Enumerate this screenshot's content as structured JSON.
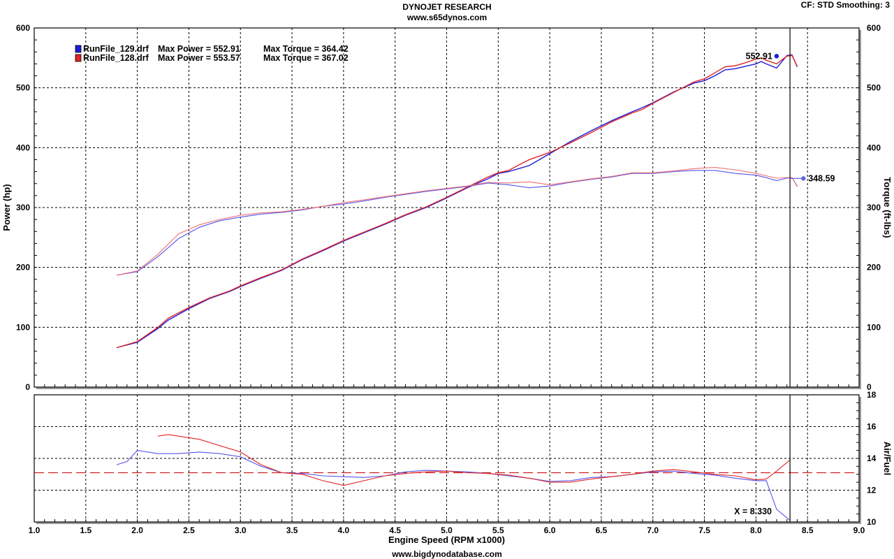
{
  "header": {
    "title": "DYNOJET RESEARCH",
    "subtitle": "www.s65dynos.com",
    "cf_info": "CF: STD  Smoothing: 3"
  },
  "footer": {
    "text": "www.bigdynodatabase.com"
  },
  "legend": [
    {
      "file": "RunFile_129.drf",
      "power_text": "Max Power = 552.91",
      "torque_text": "Max Torque = 364.42",
      "color": "#1a1adb"
    },
    {
      "file": "RunFile_128.drf",
      "power_text": "Max Power = 553.57",
      "torque_text": "Max Torque = 367.02",
      "color": "#e02424"
    }
  ],
  "annotations": {
    "power_marker": "552.91",
    "torque_marker": "348.59",
    "cursor_readout": "X = 8.330"
  },
  "chart_data": [
    {
      "type": "line",
      "title": "DYNOJET RESEARCH",
      "xlabel": "Engine Speed (RPM x1000)",
      "ylabel": "Power (hp)",
      "y2label": "Torque (ft-lbs)",
      "xlim": [
        1.0,
        9.0
      ],
      "ylim": [
        0,
        600
      ],
      "y2lim": [
        0,
        600
      ],
      "xticks": [
        "1.0",
        "1.5",
        "2.0",
        "2.5",
        "3.0",
        "3.5",
        "4.0",
        "4.5",
        "5.0",
        "5.5",
        "6.0",
        "6.5",
        "7.0",
        "7.5",
        "8.0",
        "8.5",
        "9.0"
      ],
      "yticks": [
        "0",
        "100",
        "200",
        "300",
        "400",
        "500",
        "600"
      ],
      "grid": true,
      "cursor_x": 8.33,
      "series": [
        {
          "name": "RunFile_129.drf Power",
          "color": "#1a1adb",
          "x": [
            1.8,
            2.0,
            2.2,
            2.3,
            2.5,
            2.7,
            2.9,
            3.0,
            3.2,
            3.4,
            3.6,
            3.8,
            4.0,
            4.2,
            4.4,
            4.6,
            4.8,
            5.0,
            5.2,
            5.4,
            5.5,
            5.6,
            5.8,
            6.0,
            6.2,
            6.4,
            6.6,
            6.8,
            6.9,
            7.0,
            7.2,
            7.4,
            7.5,
            7.6,
            7.7,
            7.8,
            7.9,
            8.0,
            8.05,
            8.1,
            8.2,
            8.3,
            8.35,
            8.4
          ],
          "y": [
            66,
            75,
            98,
            112,
            131,
            148,
            160,
            168,
            182,
            195,
            213,
            228,
            244,
            258,
            272,
            287,
            300,
            316,
            333,
            348,
            357,
            360,
            370,
            390,
            410,
            428,
            445,
            460,
            467,
            475,
            493,
            508,
            512,
            520,
            530,
            532,
            536,
            540,
            544,
            540,
            533,
            554,
            555,
            535
          ]
        },
        {
          "name": "RunFile_128.drf Power",
          "color": "#e02424",
          "x": [
            1.8,
            2.0,
            2.2,
            2.3,
            2.5,
            2.7,
            2.9,
            3.0,
            3.2,
            3.4,
            3.6,
            3.8,
            4.0,
            4.2,
            4.4,
            4.6,
            4.8,
            5.0,
            5.2,
            5.4,
            5.5,
            5.6,
            5.8,
            6.0,
            6.2,
            6.4,
            6.6,
            6.8,
            6.9,
            7.0,
            7.2,
            7.4,
            7.5,
            7.6,
            7.7,
            7.8,
            7.9,
            8.0,
            8.05,
            8.1,
            8.2,
            8.3,
            8.35,
            8.4
          ],
          "y": [
            66,
            76,
            100,
            115,
            133,
            149,
            161,
            169,
            183,
            196,
            214,
            229,
            245,
            259,
            273,
            288,
            301,
            317,
            334,
            351,
            358,
            362,
            380,
            392,
            408,
            425,
            443,
            458,
            464,
            474,
            492,
            510,
            515,
            525,
            535,
            537,
            542,
            548,
            550,
            546,
            540,
            553,
            554,
            536
          ]
        },
        {
          "name": "RunFile_129.drf Torque",
          "color": "#5555ee",
          "x": [
            1.8,
            2.0,
            2.2,
            2.4,
            2.6,
            2.8,
            3.0,
            3.2,
            3.4,
            3.6,
            3.8,
            4.0,
            4.2,
            4.4,
            4.6,
            4.8,
            5.0,
            5.2,
            5.4,
            5.6,
            5.8,
            6.0,
            6.2,
            6.4,
            6.6,
            6.8,
            7.0,
            7.2,
            7.4,
            7.6,
            7.8,
            8.0,
            8.1,
            8.2,
            8.3,
            8.35,
            8.4
          ],
          "y": [
            187,
            193,
            218,
            248,
            267,
            278,
            284,
            289,
            292,
            296,
            302,
            306,
            311,
            317,
            322,
            327,
            331,
            335,
            341,
            338,
            333,
            336,
            342,
            347,
            351,
            357,
            357,
            360,
            362,
            362,
            357,
            354,
            350,
            345,
            349,
            350,
            335
          ]
        },
        {
          "name": "RunFile_128.drf Torque",
          "color": "#f07070",
          "x": [
            1.8,
            2.0,
            2.2,
            2.4,
            2.6,
            2.8,
            3.0,
            3.2,
            3.4,
            3.6,
            3.8,
            4.0,
            4.2,
            4.4,
            4.6,
            4.8,
            5.0,
            5.2,
            5.4,
            5.6,
            5.8,
            6.0,
            6.2,
            6.4,
            6.6,
            6.8,
            7.0,
            7.2,
            7.4,
            7.6,
            7.8,
            8.0,
            8.1,
            8.2,
            8.3,
            8.35,
            8.4
          ],
          "y": [
            187,
            194,
            222,
            256,
            271,
            280,
            287,
            291,
            293,
            297,
            302,
            308,
            313,
            318,
            323,
            328,
            332,
            336,
            342,
            341,
            343,
            338,
            343,
            348,
            352,
            358,
            358,
            361,
            365,
            367,
            363,
            357,
            353,
            349,
            350,
            350,
            336
          ]
        }
      ]
    },
    {
      "type": "line",
      "ylabel": "Air/Fuel",
      "xlim": [
        1.0,
        9.0
      ],
      "ylim": [
        10,
        18
      ],
      "yticks": [
        "10",
        "12",
        "14",
        "16",
        "18"
      ],
      "grid": true,
      "reference_y": 13.1,
      "series": [
        {
          "name": "RunFile_129.drf Air/Fuel",
          "color": "#5555ee",
          "x": [
            1.8,
            1.9,
            2.0,
            2.2,
            2.4,
            2.6,
            2.8,
            3.0,
            3.2,
            3.4,
            3.6,
            3.8,
            4.0,
            4.2,
            4.4,
            4.6,
            4.8,
            5.0,
            5.2,
            5.4,
            5.6,
            5.8,
            6.0,
            6.2,
            6.4,
            6.6,
            6.8,
            7.0,
            7.2,
            7.4,
            7.6,
            7.8,
            8.0,
            8.1,
            8.2,
            8.33
          ],
          "y": [
            13.6,
            13.8,
            14.5,
            14.3,
            14.3,
            14.4,
            14.3,
            14.1,
            13.5,
            13.1,
            13.05,
            12.9,
            12.85,
            12.8,
            12.9,
            13.15,
            13.25,
            13.2,
            13.15,
            13.05,
            12.9,
            12.75,
            12.55,
            12.6,
            12.8,
            12.85,
            13.0,
            13.15,
            13.2,
            13.05,
            12.95,
            12.75,
            12.6,
            12.6,
            10.8,
            10.1
          ]
        },
        {
          "name": "RunFile_128.drf Air/Fuel",
          "color": "#e02424",
          "x": [
            2.2,
            2.3,
            2.5,
            2.6,
            2.8,
            3.0,
            3.2,
            3.4,
            3.6,
            3.8,
            4.0,
            4.2,
            4.4,
            4.6,
            4.8,
            5.0,
            5.2,
            5.4,
            5.6,
            5.8,
            6.0,
            6.2,
            6.4,
            6.6,
            6.8,
            7.0,
            7.2,
            7.4,
            7.6,
            7.8,
            8.0,
            8.1,
            8.2,
            8.33
          ],
          "y": [
            15.4,
            15.5,
            15.3,
            15.2,
            14.8,
            14.4,
            13.6,
            13.1,
            13.0,
            12.6,
            12.3,
            12.6,
            12.9,
            13.05,
            13.15,
            13.2,
            13.1,
            13.05,
            12.95,
            12.75,
            12.5,
            12.5,
            12.7,
            12.85,
            13.0,
            13.2,
            13.3,
            13.15,
            13.0,
            12.9,
            12.65,
            12.7,
            13.2,
            13.9
          ]
        }
      ]
    }
  ]
}
